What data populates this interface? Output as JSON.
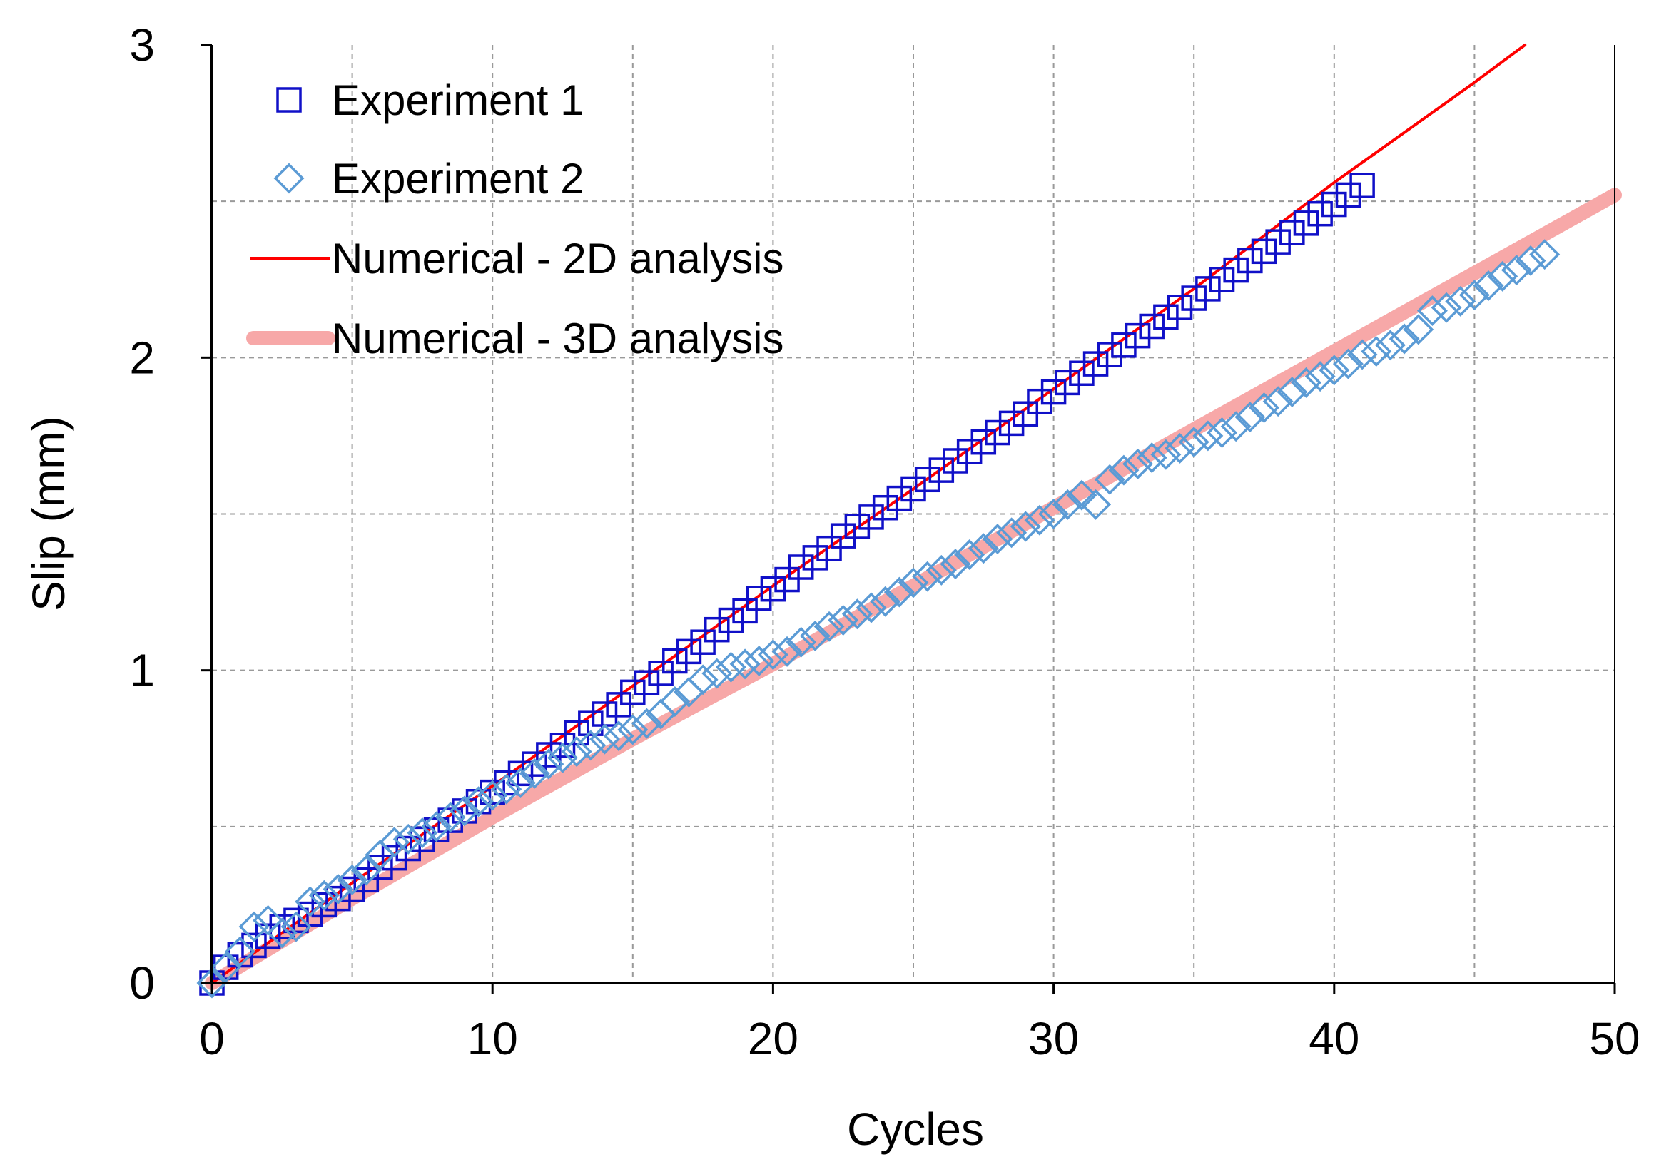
{
  "chart_data": {
    "type": "scatter",
    "xlabel": "Cycles",
    "ylabel": "Slip (mm)",
    "xlim": [
      0,
      50
    ],
    "ylim": [
      0,
      3
    ],
    "xticks": [
      0,
      10,
      20,
      30,
      40,
      50
    ],
    "yticks": [
      0,
      1,
      2,
      3
    ],
    "xtick_labels": [
      "0",
      "10",
      "20",
      "30",
      "40",
      "50"
    ],
    "ytick_labels": [
      "0",
      "1",
      "2",
      "3"
    ],
    "grid": true,
    "legend_position": "top-left",
    "series": [
      {
        "name": "Experiment 1",
        "kind": "markers",
        "marker": "square",
        "color": "#1010c8",
        "x": [
          0,
          0.5,
          1,
          1.5,
          2,
          2.5,
          3,
          3.5,
          4,
          4.5,
          5,
          5.5,
          6,
          6.5,
          7,
          7.5,
          8,
          8.5,
          9,
          9.5,
          10,
          10.5,
          11,
          11.5,
          12,
          12.5,
          13,
          13.5,
          14,
          14.5,
          15,
          15.5,
          16,
          16.5,
          17,
          17.5,
          18,
          18.5,
          19,
          19.5,
          20,
          20.5,
          21,
          21.5,
          22,
          22.5,
          23,
          23.5,
          24,
          24.5,
          25,
          25.5,
          26,
          26.5,
          27,
          27.5,
          28,
          28.5,
          29,
          29.5,
          30,
          30.5,
          31,
          31.5,
          32,
          32.5,
          33,
          33.5,
          34,
          34.5,
          35,
          35.5,
          36,
          36.5,
          37,
          37.5,
          38,
          38.5,
          39,
          39.5,
          40,
          40.5,
          41
        ],
        "y": [
          0.0,
          0.05,
          0.09,
          0.12,
          0.15,
          0.18,
          0.2,
          0.22,
          0.25,
          0.27,
          0.3,
          0.33,
          0.37,
          0.4,
          0.43,
          0.46,
          0.49,
          0.52,
          0.55,
          0.58,
          0.61,
          0.64,
          0.67,
          0.7,
          0.73,
          0.76,
          0.8,
          0.83,
          0.86,
          0.89,
          0.93,
          0.96,
          0.99,
          1.03,
          1.06,
          1.09,
          1.13,
          1.16,
          1.19,
          1.23,
          1.26,
          1.29,
          1.33,
          1.36,
          1.39,
          1.43,
          1.46,
          1.49,
          1.52,
          1.55,
          1.58,
          1.61,
          1.64,
          1.67,
          1.7,
          1.73,
          1.76,
          1.79,
          1.82,
          1.86,
          1.89,
          1.92,
          1.95,
          1.98,
          2.01,
          2.04,
          2.07,
          2.1,
          2.13,
          2.16,
          2.19,
          2.22,
          2.25,
          2.28,
          2.31,
          2.34,
          2.37,
          2.4,
          2.43,
          2.46,
          2.49,
          2.52,
          2.55
        ]
      },
      {
        "name": "Experiment 2",
        "kind": "markers",
        "marker": "diamond",
        "color": "#5b9bd5",
        "x": [
          0,
          0.5,
          1,
          1.5,
          2,
          2.5,
          3,
          3.5,
          4,
          4.5,
          5,
          5.5,
          6,
          6.5,
          7,
          7.5,
          8,
          8.5,
          9,
          9.5,
          10,
          10.5,
          11,
          11.5,
          12,
          12.5,
          13,
          13.5,
          14,
          14.5,
          15,
          15.5,
          16,
          16.5,
          17,
          17.5,
          18,
          18.5,
          19,
          19.5,
          20,
          20.5,
          21,
          21.5,
          22,
          22.5,
          23,
          23.5,
          24,
          24.5,
          25,
          25.5,
          26,
          26.5,
          27,
          27.5,
          28,
          28.5,
          29,
          29.5,
          30,
          30.5,
          31,
          31.5,
          32,
          32.5,
          33,
          33.5,
          34,
          34.5,
          35,
          35.5,
          36,
          36.5,
          37,
          37.5,
          38,
          38.5,
          39,
          39.5,
          40,
          40.5,
          41,
          41.5,
          42,
          42.5,
          43,
          43.5,
          44,
          44.5,
          45,
          45.5,
          46,
          46.5,
          47,
          47.5
        ],
        "y": [
          0.0,
          0.05,
          0.1,
          0.18,
          0.2,
          0.16,
          0.18,
          0.26,
          0.28,
          0.3,
          0.33,
          0.36,
          0.41,
          0.45,
          0.46,
          0.48,
          0.5,
          0.53,
          0.55,
          0.58,
          0.6,
          0.62,
          0.64,
          0.67,
          0.7,
          0.72,
          0.74,
          0.76,
          0.78,
          0.79,
          0.81,
          0.83,
          0.86,
          0.9,
          0.93,
          0.97,
          0.99,
          1.01,
          1.02,
          1.03,
          1.05,
          1.06,
          1.09,
          1.11,
          1.14,
          1.16,
          1.18,
          1.2,
          1.22,
          1.25,
          1.28,
          1.3,
          1.32,
          1.34,
          1.37,
          1.39,
          1.42,
          1.44,
          1.46,
          1.48,
          1.5,
          1.53,
          1.56,
          1.53,
          1.61,
          1.64,
          1.66,
          1.68,
          1.69,
          1.71,
          1.73,
          1.75,
          1.76,
          1.78,
          1.81,
          1.84,
          1.86,
          1.89,
          1.92,
          1.94,
          1.96,
          1.98,
          2.01,
          2.02,
          2.04,
          2.06,
          2.09,
          2.15,
          2.16,
          2.18,
          2.2,
          2.23,
          2.26,
          2.28,
          2.31,
          2.33
        ]
      },
      {
        "name": "Numerical - 2D analysis",
        "kind": "line",
        "color": "#ff0000",
        "x": [
          0,
          5,
          10,
          15,
          20,
          25,
          30,
          35,
          40,
          45,
          46.8
        ],
        "y": [
          0.0,
          0.32,
          0.63,
          0.95,
          1.27,
          1.58,
          1.9,
          2.22,
          2.56,
          2.88,
          3.0
        ]
      },
      {
        "name": "Numerical - 3D analysis",
        "kind": "line",
        "color": "#f7a8a8",
        "x": [
          0,
          5,
          10,
          15,
          20,
          25,
          30,
          35,
          40,
          45,
          50
        ],
        "y": [
          0.0,
          0.27,
          0.53,
          0.78,
          1.02,
          1.27,
          1.52,
          1.77,
          2.02,
          2.27,
          2.52
        ]
      }
    ]
  }
}
